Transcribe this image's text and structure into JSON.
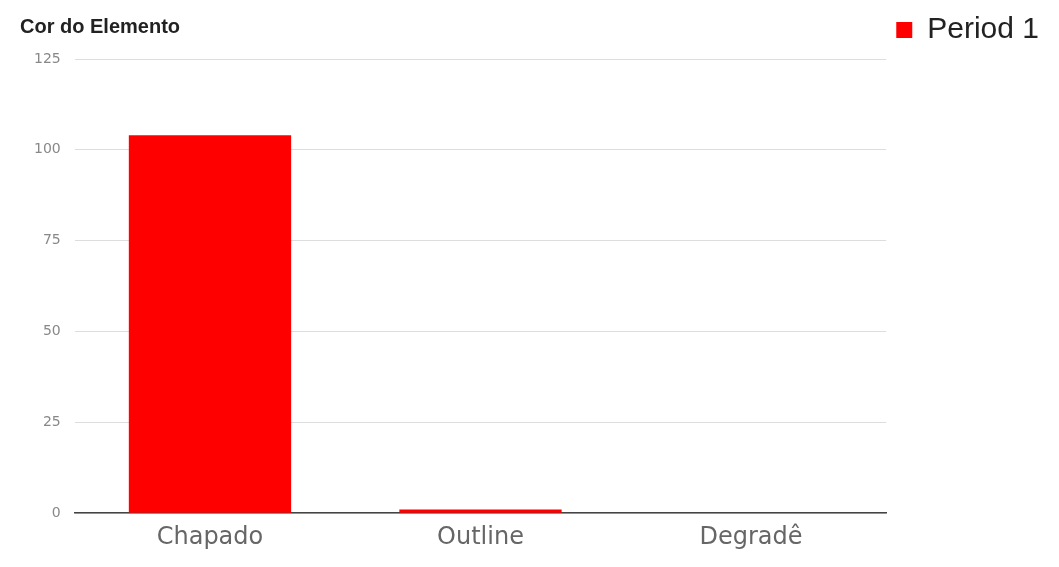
{
  "chart_data": {
    "type": "bar",
    "title": "Cor do Elemento",
    "categories": [
      "Chapado",
      "Outline",
      "Degradê"
    ],
    "series": [
      {
        "name": "Period 1",
        "color": "#ff0000",
        "values": [
          104,
          1,
          0
        ]
      }
    ],
    "ylim": [
      0,
      125
    ],
    "yticks": [
      0,
      25,
      50,
      75,
      100,
      125
    ],
    "grid": "y",
    "legend": "top right"
  }
}
